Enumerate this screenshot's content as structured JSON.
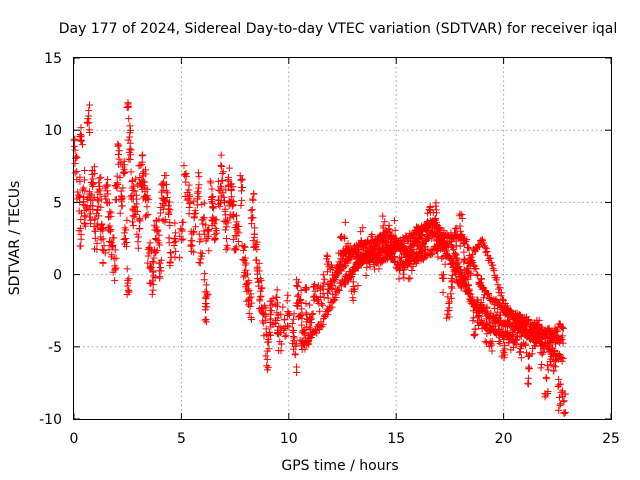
{
  "chart_data": {
    "type": "scatter",
    "title": "Day 177 of 2024, Sidereal Day-to-day VTEC variation (SDTVAR) for receiver iqal",
    "xlabel": "GPS time / hours",
    "ylabel": "SDTVAR / TECUs",
    "xlim": [
      0,
      25
    ],
    "ylim": [
      -10,
      15
    ],
    "xticks": [
      "0",
      "5",
      "10",
      "15",
      "20",
      "25"
    ],
    "yticks": [
      "-10",
      "-5",
      "0",
      "5",
      "10",
      "15"
    ],
    "grid": true,
    "marker": "+",
    "color": "#ff0000",
    "series": [
      {
        "name": "SDTVAR",
        "points": [
          [
            0.0,
            9.3
          ],
          [
            0.1,
            8.2
          ],
          [
            0.2,
            5.5
          ],
          [
            0.3,
            3.2
          ],
          [
            0.35,
            9.6
          ],
          [
            0.45,
            6.0
          ],
          [
            0.55,
            4.0
          ],
          [
            0.65,
            10.8
          ],
          [
            0.7,
            4.5
          ],
          [
            0.8,
            5.5
          ],
          [
            0.9,
            6.3
          ],
          [
            1.0,
            3.0
          ],
          [
            1.1,
            4.5
          ],
          [
            1.2,
            5.8
          ],
          [
            1.3,
            3.5
          ],
          [
            1.4,
            2.0
          ],
          [
            1.5,
            6.2
          ],
          [
            1.6,
            4.0
          ],
          [
            1.7,
            3.0
          ],
          [
            1.8,
            2.0
          ],
          [
            1.9,
            0.6
          ],
          [
            2.0,
            6.0
          ],
          [
            2.1,
            8.0
          ],
          [
            2.2,
            5.2
          ],
          [
            2.3,
            7.1
          ],
          [
            2.4,
            2.5
          ],
          [
            2.5,
            -0.4
          ],
          [
            2.55,
            10.8
          ],
          [
            2.6,
            8.7
          ],
          [
            2.7,
            6.0
          ],
          [
            2.8,
            4.0
          ],
          [
            2.9,
            5.5
          ],
          [
            3.0,
            2.6
          ],
          [
            3.1,
            6.3
          ],
          [
            3.2,
            7.0
          ],
          [
            3.3,
            6.0
          ],
          [
            3.4,
            4.7
          ],
          [
            3.5,
            1.5
          ],
          [
            3.6,
            0.5
          ],
          [
            3.7,
            -0.1
          ],
          [
            3.8,
            2.5
          ],
          [
            3.9,
            3.0
          ],
          [
            4.0,
            0.8
          ],
          [
            4.1,
            5.3
          ],
          [
            4.2,
            4.8
          ],
          [
            4.3,
            5.8
          ],
          [
            4.4,
            4.2
          ],
          [
            4.5,
            1.5
          ],
          [
            4.7,
            2.5
          ],
          [
            5.0,
            2.4
          ],
          [
            5.2,
            6.4
          ],
          [
            5.4,
            5.0
          ],
          [
            5.5,
            2.0
          ],
          [
            5.6,
            4.0
          ],
          [
            5.8,
            6.0
          ],
          [
            5.9,
            1.5
          ],
          [
            6.0,
            3.8
          ],
          [
            6.1,
            -1.2
          ],
          [
            6.15,
            -2.0
          ],
          [
            6.2,
            2.5
          ],
          [
            6.4,
            5.2
          ],
          [
            6.5,
            4.6
          ],
          [
            6.6,
            3.2
          ],
          [
            6.8,
            5.8
          ],
          [
            6.9,
            7.0
          ],
          [
            7.0,
            5.0
          ],
          [
            7.1,
            2.5
          ],
          [
            7.2,
            6.1
          ],
          [
            7.3,
            5.0
          ],
          [
            7.4,
            4.8
          ],
          [
            7.5,
            2.7
          ],
          [
            7.6,
            3.0
          ],
          [
            7.8,
            5.8
          ],
          [
            7.9,
            1.0
          ],
          [
            8.0,
            0.3
          ],
          [
            8.1,
            -1.0
          ],
          [
            8.2,
            -2.2
          ],
          [
            8.3,
            4.5
          ],
          [
            8.4,
            2.8
          ],
          [
            8.5,
            1.0
          ],
          [
            8.6,
            -0.5
          ],
          [
            8.7,
            -1.5
          ],
          [
            8.8,
            -2.3
          ],
          [
            8.9,
            -3.2
          ],
          [
            9.0,
            -5.3
          ],
          [
            9.1,
            -4.0
          ],
          [
            9.2,
            -2.5
          ],
          [
            9.4,
            -2.1
          ],
          [
            9.5,
            -3.0
          ],
          [
            9.6,
            -4.0
          ],
          [
            9.8,
            -3.1
          ],
          [
            10.0,
            -2.7
          ],
          [
            10.2,
            -4.0
          ],
          [
            10.3,
            -5.5
          ],
          [
            10.4,
            -1.5
          ],
          [
            10.5,
            -1.8
          ],
          [
            10.6,
            -3.5
          ],
          [
            10.7,
            -4.0
          ],
          [
            10.8,
            -2.0
          ],
          [
            10.9,
            -4.2
          ],
          [
            11.0,
            -3.1
          ],
          [
            11.2,
            -1.5
          ],
          [
            11.4,
            -2.0
          ],
          [
            11.6,
            -1.0
          ],
          [
            11.8,
            0.2
          ],
          [
            12.0,
            -0.5
          ],
          [
            12.2,
            0.0
          ],
          [
            12.4,
            1.5
          ],
          [
            12.6,
            2.5
          ],
          [
            12.8,
            1.0
          ],
          [
            13.0,
            -0.5
          ],
          [
            13.2,
            0.5
          ],
          [
            13.4,
            2.0
          ],
          [
            13.6,
            1.0
          ],
          [
            13.8,
            1.8
          ],
          [
            14.0,
            1.2
          ],
          [
            14.2,
            1.0
          ],
          [
            14.4,
            2.8
          ],
          [
            14.6,
            2.2
          ],
          [
            14.8,
            1.5
          ],
          [
            15.0,
            2.5
          ],
          [
            15.2,
            1.0
          ],
          [
            15.4,
            0.5
          ],
          [
            15.6,
            1.0
          ],
          [
            15.8,
            1.5
          ],
          [
            16.0,
            2.0
          ],
          [
            16.2,
            2.2
          ],
          [
            16.4,
            3.0
          ],
          [
            16.6,
            3.5
          ],
          [
            16.8,
            3.8
          ],
          [
            17.0,
            2.5
          ],
          [
            17.2,
            0.0
          ],
          [
            17.4,
            -2.5
          ],
          [
            17.6,
            -0.5
          ],
          [
            17.8,
            2.0
          ],
          [
            18.0,
            3.0
          ],
          [
            18.2,
            1.0
          ],
          [
            18.4,
            -1.0
          ],
          [
            18.6,
            -3.0
          ],
          [
            18.8,
            -2.5
          ],
          [
            19.0,
            -1.0
          ],
          [
            19.2,
            -3.5
          ],
          [
            19.4,
            -4.0
          ],
          [
            19.6,
            -3.0
          ],
          [
            19.8,
            -3.8
          ],
          [
            20.0,
            -4.5
          ],
          [
            20.2,
            -3.5
          ],
          [
            20.4,
            -4.0
          ],
          [
            20.6,
            -4.5
          ],
          [
            20.8,
            -5.0
          ],
          [
            21.0,
            -4.2
          ],
          [
            21.2,
            -6.5
          ],
          [
            21.4,
            -4.5
          ],
          [
            21.6,
            -3.5
          ],
          [
            21.8,
            -5.5
          ],
          [
            22.0,
            -7.2
          ],
          [
            22.2,
            -5.5
          ],
          [
            22.4,
            -6.0
          ],
          [
            22.6,
            -8.5
          ],
          [
            22.8,
            -8.8
          ]
        ],
        "bands": [
          {
            "x0": 10.6,
            "x1": 22.8,
            "nodes": [
              [
                10.6,
                -5.0
              ],
              [
                11.5,
                -3.5
              ],
              [
                12.5,
                -0.5
              ],
              [
                13.5,
                1.2
              ],
              [
                15.0,
                2.0
              ],
              [
                16.0,
                1.0
              ],
              [
                17.0,
                2.0
              ],
              [
                18.0,
                0.0
              ],
              [
                18.5,
                -2.0
              ],
              [
                19.5,
                -3.0
              ],
              [
                20.5,
                -3.6
              ],
              [
                21.5,
                -4.2
              ],
              [
                22.8,
                -4.5
              ]
            ]
          },
          {
            "x0": 11.8,
            "x1": 22.8,
            "nodes": [
              [
                11.8,
                -1.5
              ],
              [
                12.6,
                1.5
              ],
              [
                13.2,
                2.0
              ],
              [
                14.0,
                2.2
              ],
              [
                14.6,
                3.0
              ],
              [
                15.5,
                1.5
              ],
              [
                16.5,
                3.6
              ],
              [
                17.2,
                2.8
              ],
              [
                18.2,
                2.5
              ],
              [
                19.0,
                -1.0
              ],
              [
                20.0,
                -2.5
              ],
              [
                21.0,
                -3.2
              ],
              [
                22.0,
                -4.0
              ],
              [
                22.8,
                -3.5
              ]
            ]
          },
          {
            "x0": 12.2,
            "x1": 22.8,
            "nodes": [
              [
                12.2,
                0.0
              ],
              [
                13.0,
                1.5
              ],
              [
                14.2,
                0.8
              ],
              [
                15.2,
                2.2
              ],
              [
                16.8,
                3.8
              ],
              [
                17.4,
                1.5
              ],
              [
                18.0,
                -1.0
              ],
              [
                18.6,
                1.5
              ],
              [
                19.0,
                2.3
              ],
              [
                19.5,
                0.5
              ],
              [
                20.0,
                -2.0
              ],
              [
                21.0,
                -4.0
              ],
              [
                22.0,
                -5.0
              ],
              [
                22.8,
                -6.0
              ]
            ]
          },
          {
            "x0": 12.6,
            "x1": 20.6,
            "nodes": [
              [
                12.6,
                -0.5
              ],
              [
                13.4,
                1.0
              ],
              [
                14.4,
                2.6
              ],
              [
                15.0,
                0.5
              ],
              [
                15.8,
                1.0
              ],
              [
                16.6,
                2.8
              ],
              [
                17.6,
                2.0
              ],
              [
                18.2,
                -0.5
              ],
              [
                19.0,
                -3.5
              ],
              [
                20.6,
                -4.5
              ]
            ]
          }
        ]
      }
    ]
  }
}
